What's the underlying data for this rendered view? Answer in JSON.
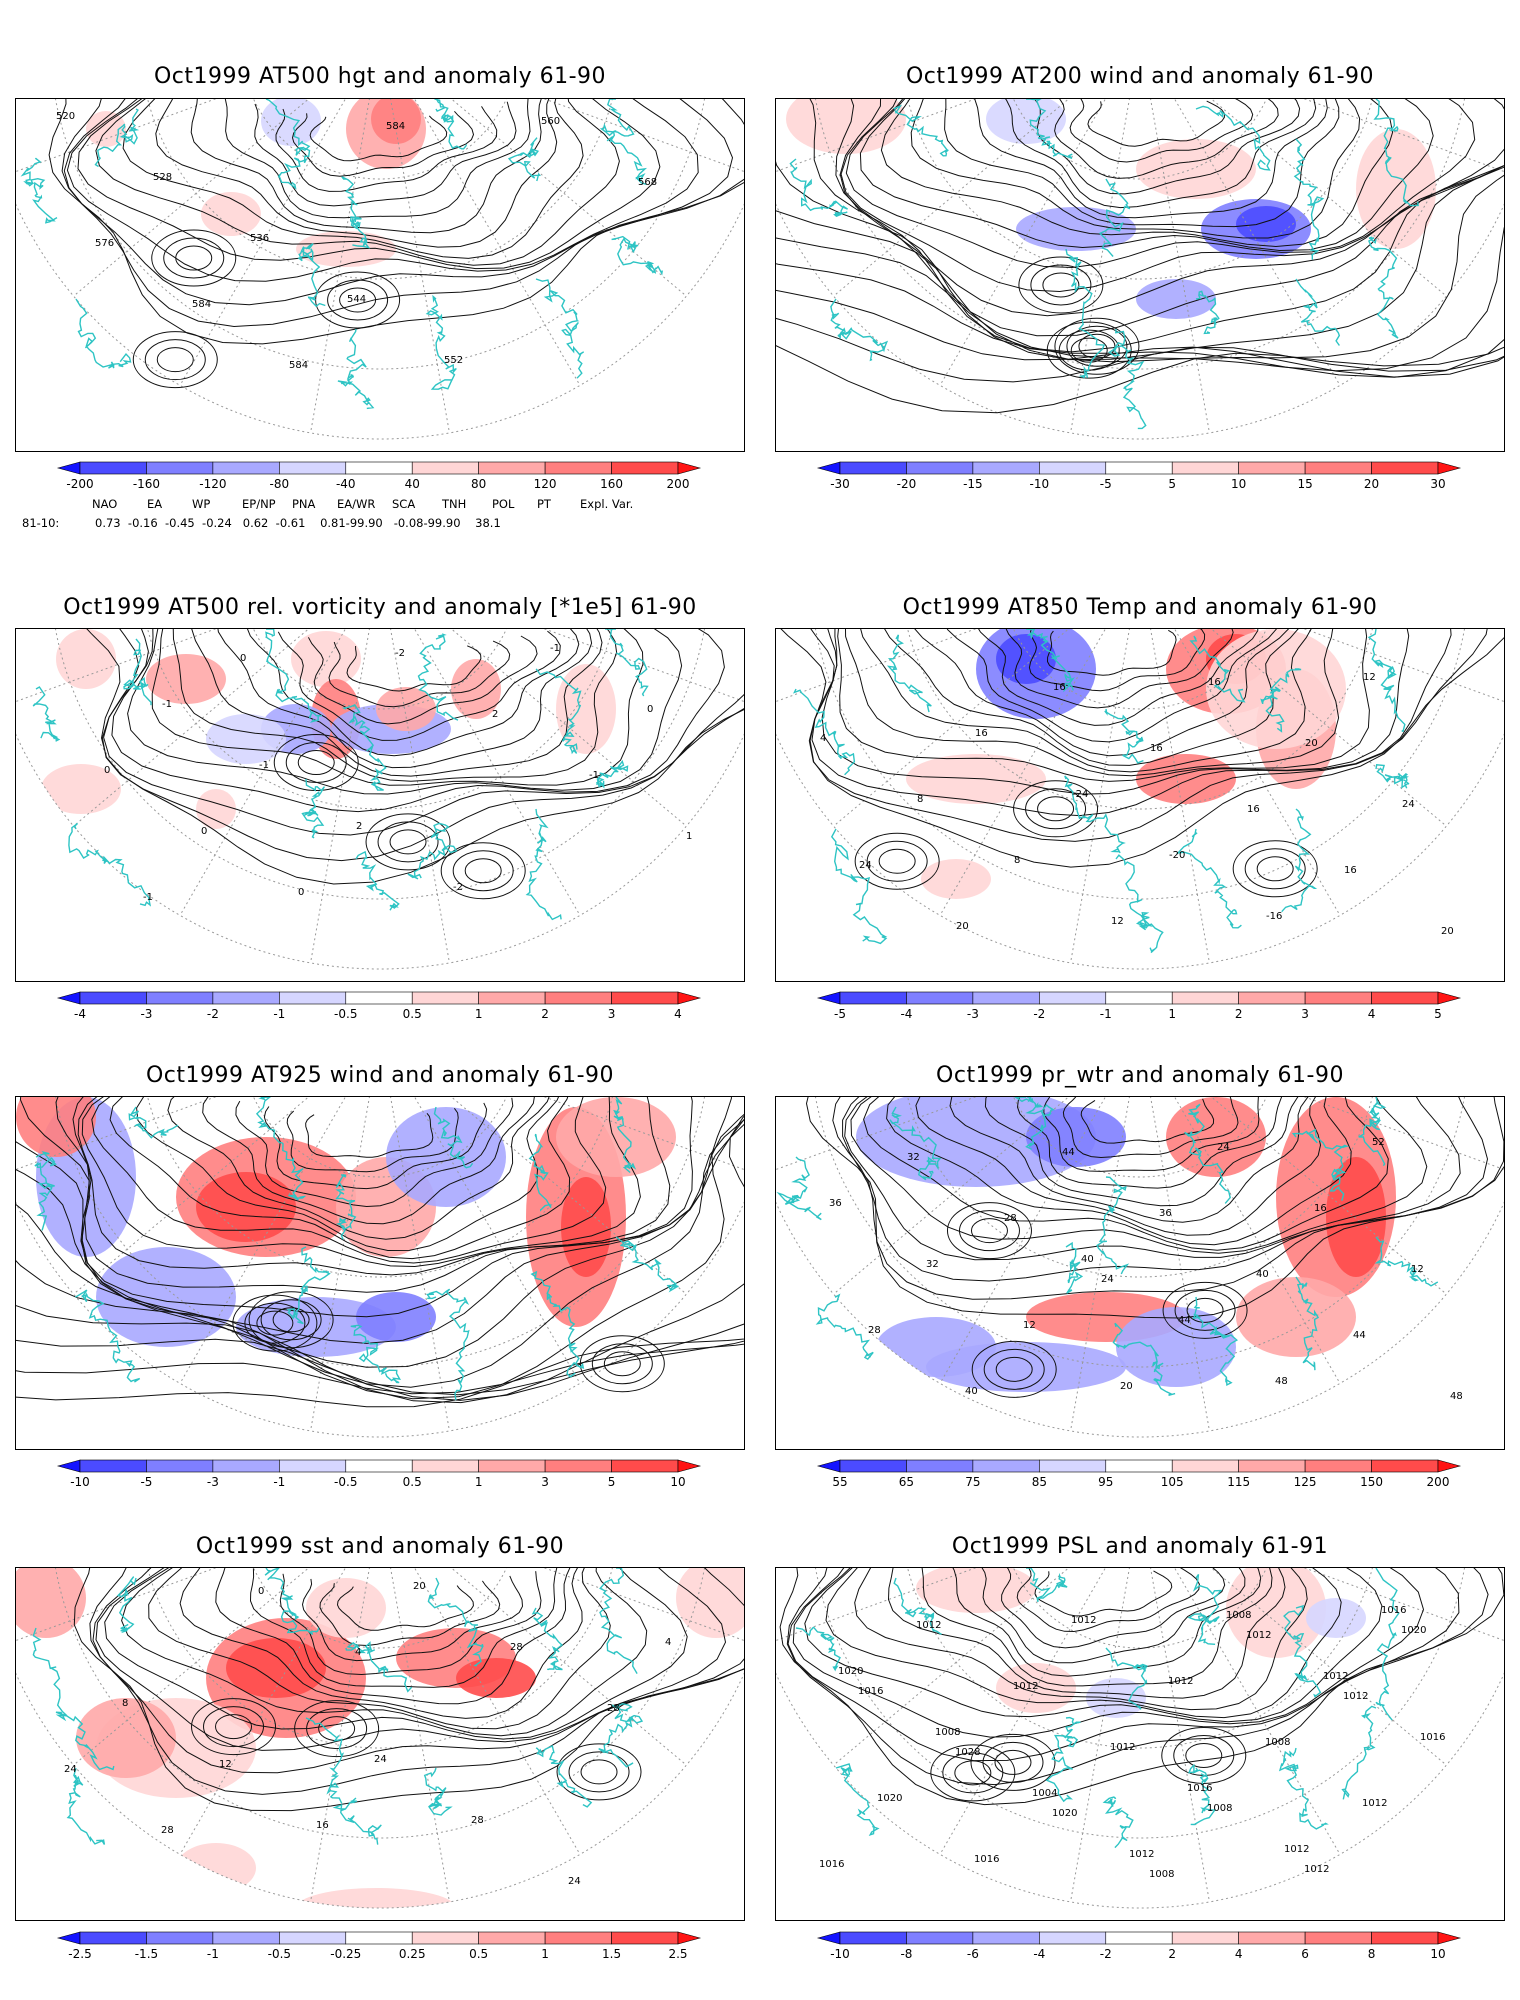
{
  "panels": [
    {
      "key": "p1",
      "title": "Oct1999 AT500 hgt and anomaly 61-90",
      "colorbar": {
        "ticks": [
          "-200",
          "-160",
          "-120",
          "-80",
          "-40",
          "40",
          "80",
          "120",
          "160",
          "200"
        ]
      },
      "contour_labels": [
        "520",
        "528",
        "536",
        "544",
        "552",
        "560",
        "568",
        "576",
        "584",
        "584",
        "584"
      ]
    },
    {
      "key": "p2",
      "title": "Oct1999 AT200 wind and anomaly 61-90",
      "colorbar": {
        "ticks": [
          "-30",
          "-20",
          "-15",
          "-10",
          "-5",
          "5",
          "10",
          "15",
          "20",
          "30"
        ]
      },
      "contour_labels": []
    },
    {
      "key": "p3",
      "title": "Oct1999 AT500 rel. vorticity and anomaly [*1e5] 61-90",
      "colorbar": {
        "ticks": [
          "-4",
          "-3",
          "-2",
          "-1",
          "-0.5",
          "0.5",
          "1",
          "2",
          "3",
          "4"
        ]
      },
      "contour_labels": [
        "-1",
        "-1",
        "2",
        "-2",
        "-1",
        "0",
        "0",
        "0",
        "0",
        "-2",
        "2",
        "-1",
        "1",
        "-1",
        "0"
      ]
    },
    {
      "key": "p4",
      "title": "Oct1999 AT850 Temp and anomaly 61-90",
      "colorbar": {
        "ticks": [
          "-5",
          "-4",
          "-3",
          "-2",
          "-1",
          "1",
          "2",
          "3",
          "4",
          "5"
        ]
      },
      "contour_labels": [
        "16",
        "-24",
        "-20",
        "-16",
        "12",
        "4",
        "8",
        "8",
        "12",
        "16",
        "20",
        "24",
        "24",
        "20",
        "16",
        "16",
        "16",
        "16",
        "20"
      ]
    },
    {
      "key": "p5",
      "title": "Oct1999 AT925 wind and anomaly 61-90",
      "colorbar": {
        "ticks": [
          "-10",
          "-5",
          "-3",
          "-1",
          "-0.5",
          "0.5",
          "1",
          "3",
          "5",
          "10"
        ]
      },
      "contour_labels": []
    },
    {
      "key": "p6",
      "title": "Oct1999 pr_wtr and anomaly 61-90",
      "colorbar": {
        "ticks": [
          "55",
          "65",
          "75",
          "85",
          "95",
          "105",
          "115",
          "125",
          "150",
          "200"
        ]
      },
      "contour_labels": [
        "40",
        "44",
        "48",
        "52",
        "36",
        "32",
        "12",
        "20",
        "24",
        "16",
        "12",
        "28",
        "40",
        "44",
        "36",
        "40",
        "44",
        "48",
        "32",
        "28",
        "24"
      ]
    },
    {
      "key": "p7",
      "title": "Oct1999 sst and anomaly 61-90",
      "colorbar": {
        "ticks": [
          "-2.5",
          "-1.5",
          "-1",
          "-0.5",
          "-0.25",
          "0.25",
          "0.5",
          "1",
          "1.5",
          "2.5"
        ]
      },
      "contour_labels": [
        "24",
        "28",
        "24",
        "4",
        "8",
        "12",
        "16",
        "20",
        "28",
        "28",
        "24",
        "28",
        "0",
        "4"
      ]
    },
    {
      "key": "p8",
      "title": "Oct1999 PSL and anomaly 61-91",
      "colorbar": {
        "ticks": [
          "-10",
          "-8",
          "-6",
          "-4",
          "-2",
          "2",
          "4",
          "6",
          "8",
          "10"
        ]
      },
      "contour_labels": [
        "1016",
        "1012",
        "1016",
        "1020",
        "1008",
        "1004",
        "1012",
        "1008",
        "1012",
        "1016",
        "1020",
        "1016",
        "1012",
        "1012",
        "1008",
        "1012",
        "1016",
        "1012",
        "1012",
        "1012",
        "1008",
        "1012",
        "1020",
        "1016",
        "1028",
        "1020",
        "1008",
        "1012",
        "1012"
      ]
    }
  ],
  "index_table": {
    "headers": [
      "NAO",
      "EA",
      "WP",
      "EP/NP",
      "PNA",
      "EA/WR",
      "SCA",
      "TNH",
      "POL",
      "PT",
      "Expl. Var."
    ],
    "row_label": "81-10:",
    "row_values": "0.73  -0.16  -0.45  -0.24   0.62  -0.61    0.81-99.90   -0.08-99.90    38.1"
  },
  "colors": {
    "coast": "#2ec4c4",
    "palette": [
      "#1414ff",
      "#4b4bff",
      "#7f7fff",
      "#a9a9ff",
      "#d6d6ff",
      "#ffffff",
      "#ffd6d6",
      "#ffa9a9",
      "#ff7f7f",
      "#ff4b4b",
      "#ff1414"
    ]
  }
}
